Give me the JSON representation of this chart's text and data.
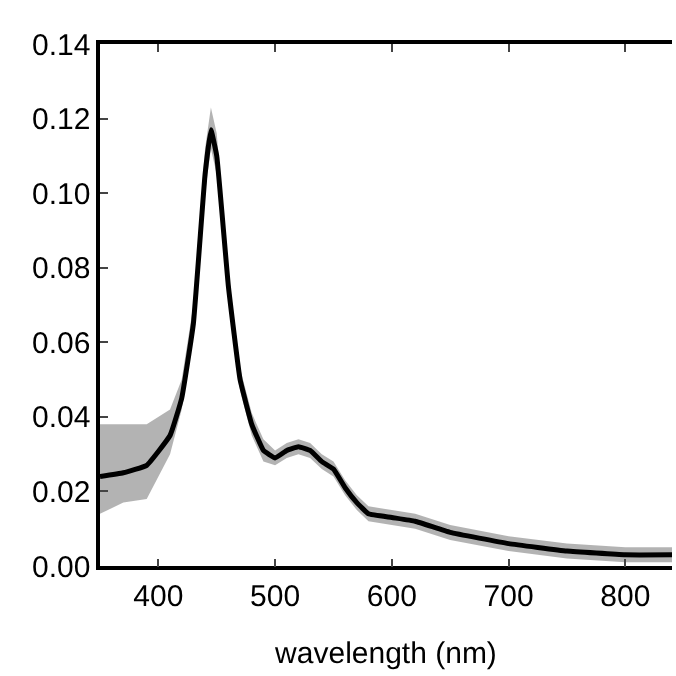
{
  "chart_data": {
    "type": "line",
    "xlabel": "wavelength (nm)",
    "x": [
      350,
      370,
      390,
      410,
      420,
      430,
      440,
      445,
      450,
      460,
      470,
      480,
      490,
      500,
      510,
      520,
      530,
      540,
      550,
      560,
      570,
      580,
      600,
      620,
      650,
      700,
      750,
      800,
      840
    ],
    "series": [
      {
        "color": "#000000",
        "values": [
          0.024,
          0.025,
          0.027,
          0.035,
          0.045,
          0.065,
          0.105,
          0.117,
          0.11,
          0.075,
          0.05,
          0.038,
          0.031,
          0.029,
          0.031,
          0.032,
          0.031,
          0.028,
          0.026,
          0.021,
          0.017,
          0.014,
          0.013,
          0.012,
          0.009,
          0.006,
          0.004,
          0.003,
          0.003
        ],
        "lower": [
          0.014,
          0.017,
          0.018,
          0.03,
          0.042,
          0.062,
          0.1,
          0.112,
          0.105,
          0.072,
          0.047,
          0.035,
          0.028,
          0.027,
          0.029,
          0.03,
          0.029,
          0.026,
          0.024,
          0.019,
          0.015,
          0.012,
          0.011,
          0.01,
          0.007,
          0.004,
          0.002,
          0.001,
          0.001
        ],
        "upper": [
          0.038,
          0.038,
          0.038,
          0.042,
          0.05,
          0.07,
          0.112,
          0.123,
          0.116,
          0.079,
          0.053,
          0.041,
          0.034,
          0.031,
          0.033,
          0.034,
          0.033,
          0.03,
          0.028,
          0.023,
          0.019,
          0.016,
          0.015,
          0.014,
          0.011,
          0.008,
          0.006,
          0.005,
          0.005
        ]
      }
    ],
    "xlim": [
      350,
      840
    ],
    "xticks": [
      400,
      500,
      600,
      700,
      800
    ],
    "ylim": [
      0,
      0.14
    ],
    "yticks": [
      {
        "value": 0,
        "label": "0.00"
      },
      {
        "value": 0.02,
        "label": "0.02"
      },
      {
        "value": 0.04,
        "label": "0.04"
      },
      {
        "value": 0.06,
        "label": "0.06"
      },
      {
        "value": 0.08,
        "label": "0.08"
      },
      {
        "value": 0.1,
        "label": "0.10"
      },
      {
        "value": 0.12,
        "label": "0.12"
      },
      {
        "value": 0.14,
        "label": "0.14"
      }
    ],
    "marker": "none",
    "line_style": "solid"
  }
}
